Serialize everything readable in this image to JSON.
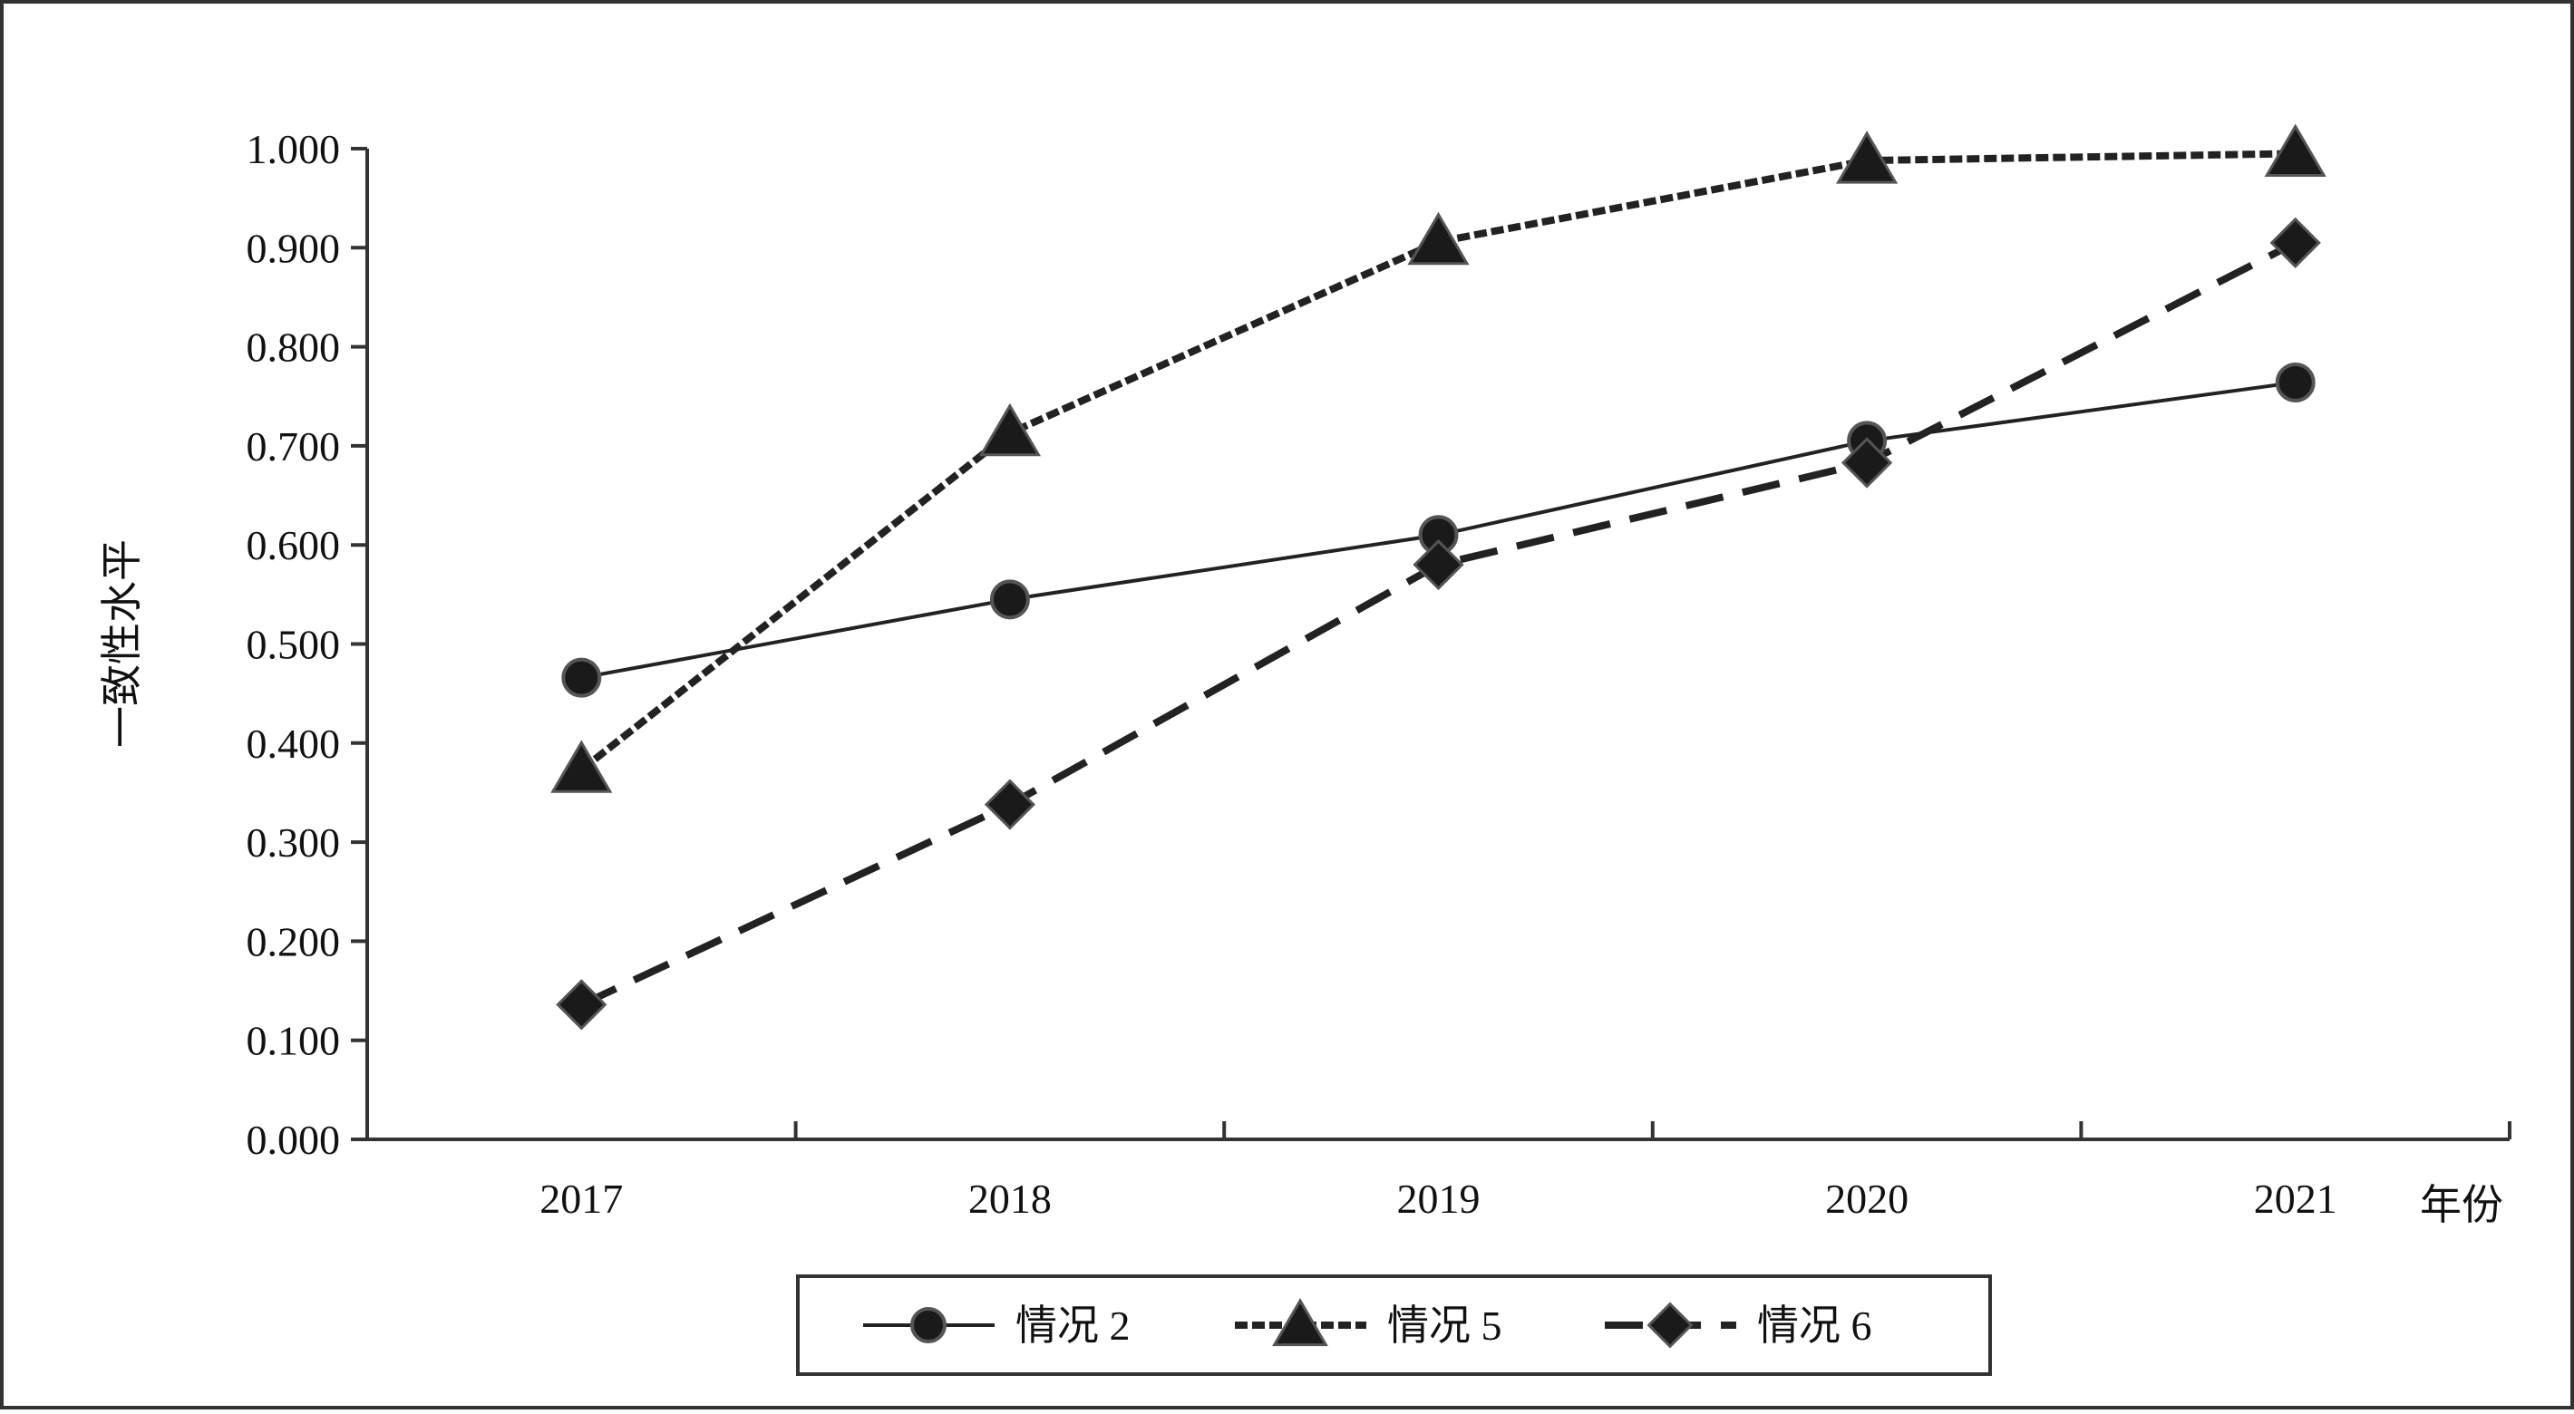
{
  "chart_data": {
    "type": "line",
    "title": "",
    "xlabel": "年份",
    "ylabel": "一致性水平",
    "categories": [
      "2017",
      "2018",
      "2019",
      "2020",
      "2021"
    ],
    "ylim": [
      0.0,
      1.0
    ],
    "yticks": [
      "0.000",
      "0.100",
      "0.200",
      "0.300",
      "0.400",
      "0.500",
      "0.600",
      "0.700",
      "0.800",
      "0.900",
      "1.000"
    ],
    "grid": false,
    "legend_position": "bottom",
    "series": [
      {
        "name": "情况 2",
        "values": [
          0.466,
          0.545,
          0.61,
          0.705,
          0.764
        ],
        "marker": "circle",
        "line_style": "solid",
        "color": "#222222"
      },
      {
        "name": "情况 5",
        "values": [
          0.373,
          0.713,
          0.906,
          0.988,
          0.995
        ],
        "marker": "triangle",
        "line_style": "short-dash",
        "color": "#222222"
      },
      {
        "name": "情况 6",
        "values": [
          0.136,
          0.338,
          0.58,
          0.683,
          0.905
        ],
        "marker": "diamond",
        "line_style": "long-dash",
        "color": "#222222"
      }
    ]
  }
}
